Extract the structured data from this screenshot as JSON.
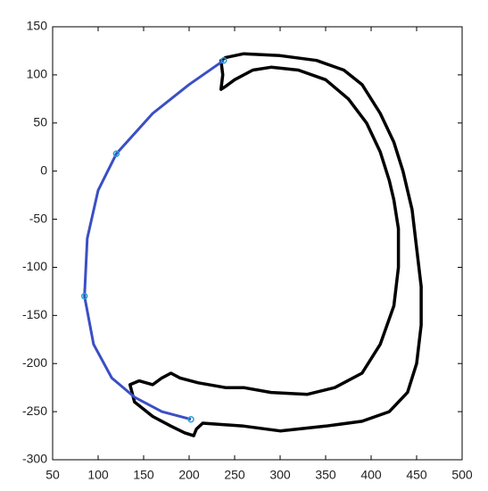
{
  "chart_data": {
    "type": "line",
    "xlim": [
      50,
      500
    ],
    "ylim": [
      -300,
      150
    ],
    "xticks": [
      50,
      100,
      150,
      200,
      250,
      300,
      350,
      400,
      450,
      500
    ],
    "yticks": [
      -300,
      -250,
      -200,
      -150,
      -100,
      -50,
      0,
      50,
      100,
      150
    ],
    "grid": false,
    "series": [
      {
        "color": "#000000",
        "closed": true,
        "width": 3.5,
        "markers": false,
        "x": [
          240,
          260,
          300,
          340,
          370,
          390,
          410,
          425,
          435,
          445,
          450,
          455,
          455,
          450,
          440,
          420,
          390,
          350,
          300,
          260,
          215,
          208,
          205,
          195,
          180,
          160,
          140,
          135,
          145,
          160,
          170,
          180,
          190,
          210,
          240,
          260,
          290,
          330,
          360,
          390,
          410,
          425,
          430,
          430,
          425,
          420,
          410,
          395,
          375,
          350,
          320,
          290,
          270,
          250,
          240,
          235,
          237,
          235
        ],
        "values": [
          118,
          122,
          120,
          115,
          105,
          90,
          60,
          30,
          0,
          -40,
          -80,
          -120,
          -160,
          -200,
          -230,
          -250,
          -260,
          -265,
          -270,
          -265,
          -262,
          -268,
          -275,
          -272,
          -265,
          -255,
          -240,
          -222,
          -218,
          -222,
          -215,
          -210,
          -215,
          -220,
          -225,
          -225,
          -230,
          -232,
          -225,
          -210,
          -180,
          -140,
          -100,
          -60,
          -30,
          -10,
          20,
          50,
          75,
          95,
          105,
          108,
          105,
          95,
          88,
          85,
          100,
          115
        ]
      },
      {
        "color": "#3a4fc4",
        "closed": false,
        "width": 3,
        "markers": false,
        "x": [
          238,
          200,
          160,
          120,
          100,
          88,
          85,
          95,
          115,
          140,
          170,
          202
        ],
        "values": [
          115,
          90,
          60,
          18,
          -20,
          -70,
          -130,
          -180,
          -215,
          -235,
          -250,
          -258
        ]
      },
      {
        "color": "#2a9fd6",
        "closed": false,
        "width": 0,
        "markers": true,
        "x": [
          238,
          120,
          85,
          202
        ],
        "values": [
          115,
          18,
          -130,
          -258
        ]
      }
    ]
  }
}
